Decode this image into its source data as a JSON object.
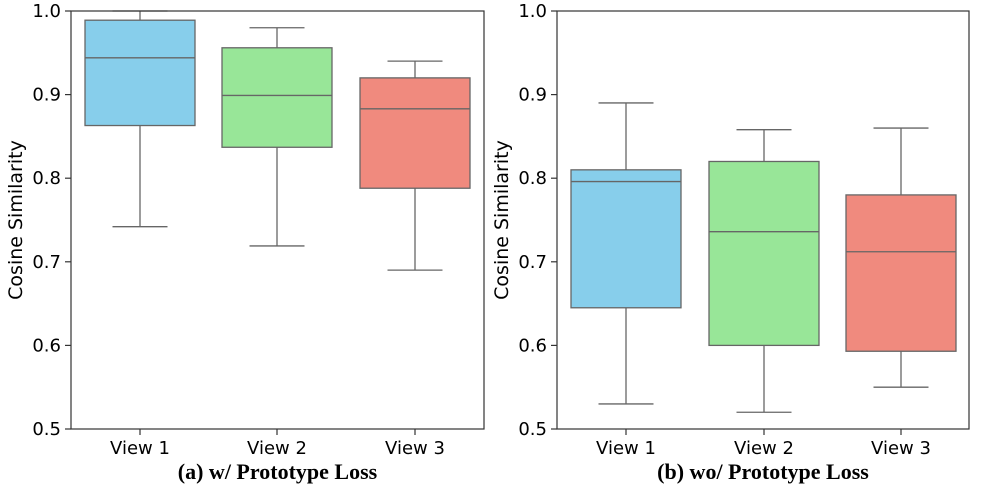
{
  "chart_data": [
    {
      "type": "box",
      "caption": "(a) w/ Prototype Loss",
      "ylabel": "Cosine Similarity",
      "ylim": [
        0.5,
        1.0
      ],
      "yticks": [
        "0.5",
        "0.6",
        "0.7",
        "0.8",
        "0.9",
        "1.0"
      ],
      "categories": [
        "View 1",
        "View 2",
        "View 3"
      ],
      "boxes": [
        {
          "whisker_low": 0.742,
          "q1": 0.863,
          "median": 0.944,
          "q3": 0.989,
          "whisker_high": 1.0,
          "color": "#87CEEB"
        },
        {
          "whisker_low": 0.719,
          "q1": 0.837,
          "median": 0.899,
          "q3": 0.956,
          "whisker_high": 0.98,
          "color": "#98E698"
        },
        {
          "whisker_low": 0.69,
          "q1": 0.788,
          "median": 0.883,
          "q3": 0.92,
          "whisker_high": 0.94,
          "color": "#F08A7E"
        }
      ]
    },
    {
      "type": "box",
      "caption": "(b) wo/ Prototype Loss",
      "ylabel": "Cosine Similarity",
      "ylim": [
        0.5,
        1.0
      ],
      "yticks": [
        "0.5",
        "0.6",
        "0.7",
        "0.8",
        "0.9",
        "1.0"
      ],
      "categories": [
        "View 1",
        "View 2",
        "View 3"
      ],
      "boxes": [
        {
          "whisker_low": 0.53,
          "q1": 0.645,
          "median": 0.796,
          "q3": 0.81,
          "whisker_high": 0.89,
          "color": "#87CEEB"
        },
        {
          "whisker_low": 0.52,
          "q1": 0.6,
          "median": 0.736,
          "q3": 0.82,
          "whisker_high": 0.858,
          "color": "#98E698"
        },
        {
          "whisker_low": 0.55,
          "q1": 0.593,
          "median": 0.712,
          "q3": 0.78,
          "whisker_high": 0.86,
          "color": "#F08A7E"
        }
      ]
    }
  ]
}
